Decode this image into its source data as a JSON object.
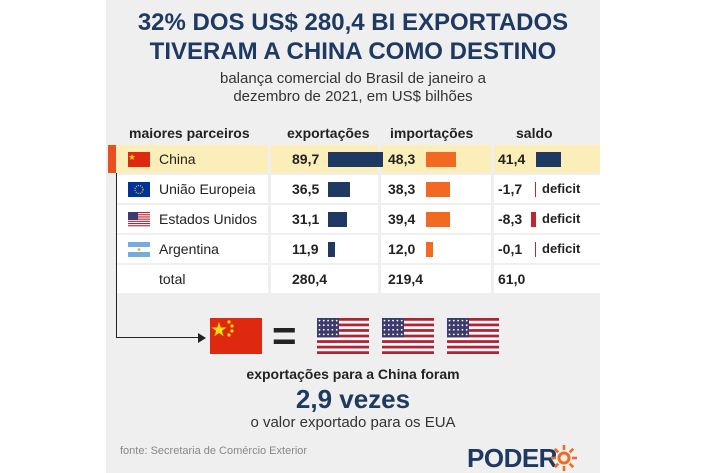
{
  "title_line1": "32% DOS US$ 280,4 BI EXPORTADOS",
  "title_line2": "TIVERAM A CHINA COMO DESTINO",
  "subtitle_line1": "balança comercial do Brasil de janeiro a",
  "subtitle_line2": "dezembro de 2021, em US$ bilhões",
  "headers": {
    "partners": "maiores parceiros",
    "exports": "exportações",
    "imports": "importações",
    "balance": "saldo"
  },
  "deficit_label": "deficit",
  "colors": {
    "navy": "#1e3a63",
    "orange": "#f26a21",
    "red": "#c0272d",
    "highlight": "#fbeeb8"
  },
  "chart_data": {
    "type": "table",
    "columns": [
      "maiores parceiros",
      "exportações",
      "importações",
      "saldo"
    ],
    "rows": [
      {
        "name": "China",
        "flag": "china-flag",
        "exports": 89.7,
        "imports": 48.3,
        "balance": 41.4,
        "exports_label": "89,7",
        "imports_label": "48,3",
        "balance_label": "41,4",
        "deficit": false
      },
      {
        "name": "União Europeia",
        "flag": "eu-flag",
        "exports": 36.5,
        "imports": 38.3,
        "balance": -1.7,
        "exports_label": "36,5",
        "imports_label": "38,3",
        "balance_label": "-1,7",
        "deficit": true
      },
      {
        "name": "Estados Unidos",
        "flag": "usa-flag",
        "exports": 31.1,
        "imports": 39.4,
        "balance": -8.3,
        "exports_label": "31,1",
        "imports_label": "39,4",
        "balance_label": "-8,3",
        "deficit": true
      },
      {
        "name": "Argentina",
        "flag": "argentina-flag",
        "exports": 11.9,
        "imports": 12.0,
        "balance": -0.1,
        "exports_label": "11,9",
        "imports_label": "12,0",
        "balance_label": "-0,1",
        "deficit": true
      }
    ],
    "total": {
      "name": "total",
      "exports_label": "280,4",
      "imports_label": "219,4",
      "balance_label": "61,0"
    },
    "max_value": 89.7
  },
  "comparison": {
    "line1": "exportações para a China foram",
    "line2": "2,9 vezes",
    "line3": "o valor exportado para os EUA"
  },
  "source": "fonte: Secretaria de Comércio Exterior",
  "brand": "PODER"
}
